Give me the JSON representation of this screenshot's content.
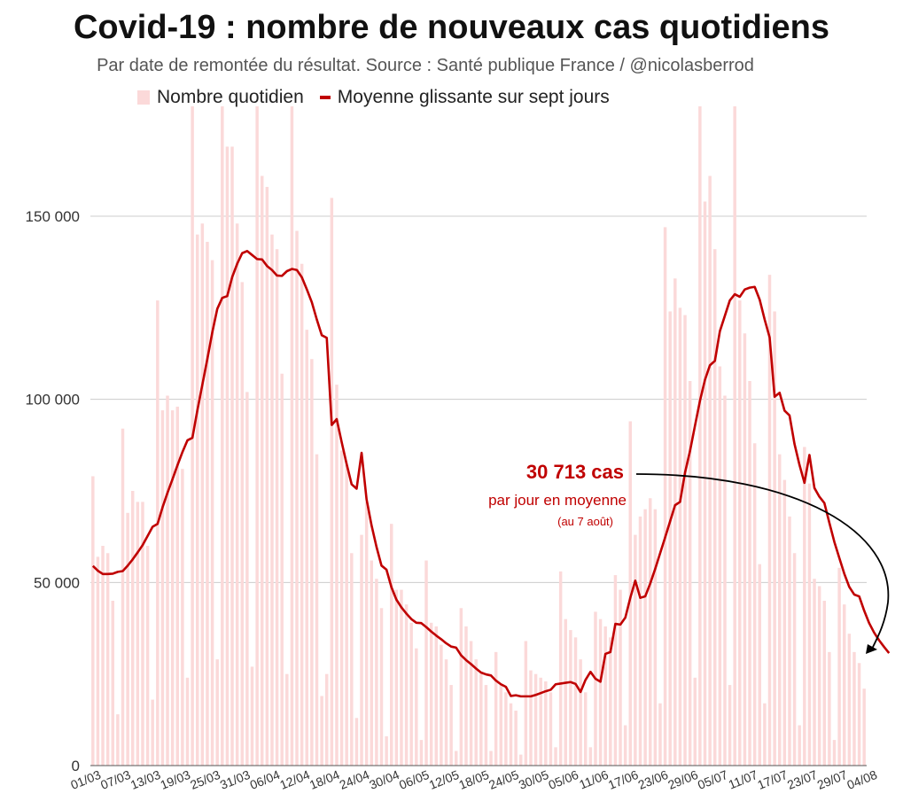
{
  "header": {
    "title": "Covid-19 : nombre de nouveaux cas quotidiens",
    "subtitle": "Par date de remontée du résultat. Source : Santé publique France / @nicolasberrod"
  },
  "legend": {
    "bars": "Nombre quotidien",
    "line": "Moyenne glissante sur sept jours"
  },
  "annotation": {
    "value": "30 713 cas",
    "line1": "par jour en moyenne",
    "line2": "(au 7 août)"
  },
  "colors": {
    "bars": "#fbd9d9",
    "line": "#c00000",
    "grid": "#cccccc",
    "arrow": "#000000"
  },
  "chart_data": {
    "type": "bar",
    "title": "Covid-19 : nombre de nouveaux cas quotidiens",
    "xlabel": "",
    "ylabel": "",
    "ylim": [
      0,
      180000
    ],
    "yticks": [
      0,
      50000,
      100000,
      150000
    ],
    "ytick_labels": [
      "0",
      "50 000",
      "100 000",
      "150 000"
    ],
    "xtick_labels": [
      "01/03",
      "07/03",
      "13/03",
      "19/03",
      "25/03",
      "31/03",
      "06/04",
      "12/04",
      "18/04",
      "24/04",
      "30/04",
      "06/05",
      "12/05",
      "18/05",
      "24/05",
      "30/05",
      "05/06",
      "11/06",
      "17/06",
      "23/06",
      "29/06",
      "05/07",
      "11/07",
      "17/07",
      "23/07",
      "29/07",
      "04/08"
    ],
    "x_start": "01/03",
    "series": [
      {
        "name": "Nombre quotidien",
        "type": "bar",
        "values": [
          79000,
          57000,
          60000,
          58000,
          45000,
          14000,
          92000,
          69000,
          75000,
          72000,
          72000,
          60000,
          18000,
          127000,
          97000,
          101000,
          97000,
          98000,
          81000,
          24000,
          180000,
          145000,
          148000,
          143000,
          138000,
          29000,
          180000,
          169000,
          169000,
          148000,
          132000,
          102000,
          27000,
          180000,
          161000,
          158000,
          145000,
          141000,
          107000,
          25000,
          180000,
          146000,
          137000,
          119000,
          111000,
          85000,
          19000,
          25000,
          155000,
          104000,
          86000,
          82000,
          58000,
          13000,
          63000,
          72000,
          56000,
          51000,
          43000,
          8000,
          66000,
          48000,
          48000,
          44000,
          39000,
          32000,
          7000,
          56000,
          39000,
          38000,
          33000,
          29000,
          22000,
          4000,
          43000,
          38000,
          34000,
          29000,
          25000,
          22000,
          4000,
          31000,
          22000,
          20000,
          17000,
          15000,
          3000,
          34000,
          26000,
          25000,
          24000,
          23000,
          20000,
          5000,
          53000,
          40000,
          37000,
          35000,
          29000,
          20000,
          5000,
          42000,
          40000,
          38000,
          35000,
          52000,
          48000,
          11000,
          94000,
          63000,
          68000,
          70000,
          73000,
          70000,
          17000,
          147000,
          124000,
          133000,
          125000,
          123000,
          105000,
          24000,
          180000,
          154000,
          161000,
          141000,
          109000,
          101000,
          22000,
          180000,
          127000,
          118000,
          105000,
          88000,
          55000,
          17000,
          134000,
          124000,
          85000,
          78000,
          68000,
          58000,
          11000,
          87000,
          77000,
          51000,
          49000,
          45000,
          31000,
          7000,
          54000,
          44000,
          36000,
          31000,
          28000,
          21000
        ],
        "note": "bars exceeding the top of the frame are shown clipped"
      },
      {
        "name": "Moyenne glissante sur sept jours",
        "type": "line",
        "values": [
          54500,
          53200,
          52300,
          52300,
          52400,
          52900,
          53100,
          54600,
          56300,
          58200,
          60200,
          62700,
          65200,
          66000,
          70500,
          74500,
          78200,
          82000,
          85600,
          88800,
          89500,
          97000,
          104000,
          111000,
          118300,
          124700,
          127700,
          128200,
          133400,
          137000,
          139900,
          140500,
          139400,
          138300,
          138200,
          136400,
          135300,
          133800,
          133700,
          135000,
          135600,
          135300,
          133300,
          130000,
          126500,
          121800,
          117500,
          116800,
          93000,
          94600,
          88300,
          82300,
          76800,
          75600,
          85400,
          72700,
          65600,
          59700,
          54600,
          53500,
          48700,
          45300,
          43200,
          41500,
          40000,
          39000,
          38900,
          37800,
          36600,
          35500,
          34500,
          33400,
          32500,
          32200,
          30100,
          28800,
          27700,
          26500,
          25400,
          24900,
          24600,
          23200,
          22200,
          21500,
          19000,
          19200,
          18900,
          18900,
          18900,
          19300,
          19800,
          20300,
          20700,
          22200,
          22400,
          22600,
          22800,
          22300,
          20100,
          23400,
          25600,
          23700,
          22900,
          30500,
          31000,
          38700,
          38500,
          40400,
          45800,
          50500,
          45800,
          46200,
          49700,
          53700,
          58000,
          62300,
          66700,
          71100,
          72000,
          80000,
          85900,
          92800,
          99600,
          105300,
          109300,
          110500,
          118600,
          122800,
          127000,
          128700,
          128000,
          130000,
          130500,
          130700,
          127200,
          121800,
          116900,
          100700,
          101800,
          96900,
          95600,
          87800,
          82100,
          77200,
          84800,
          75800,
          73400,
          71700,
          66300,
          61100,
          56700,
          52400,
          48800,
          46700,
          46200,
          42300,
          38900,
          36300,
          34200,
          32400,
          30713
        ]
      }
    ]
  }
}
